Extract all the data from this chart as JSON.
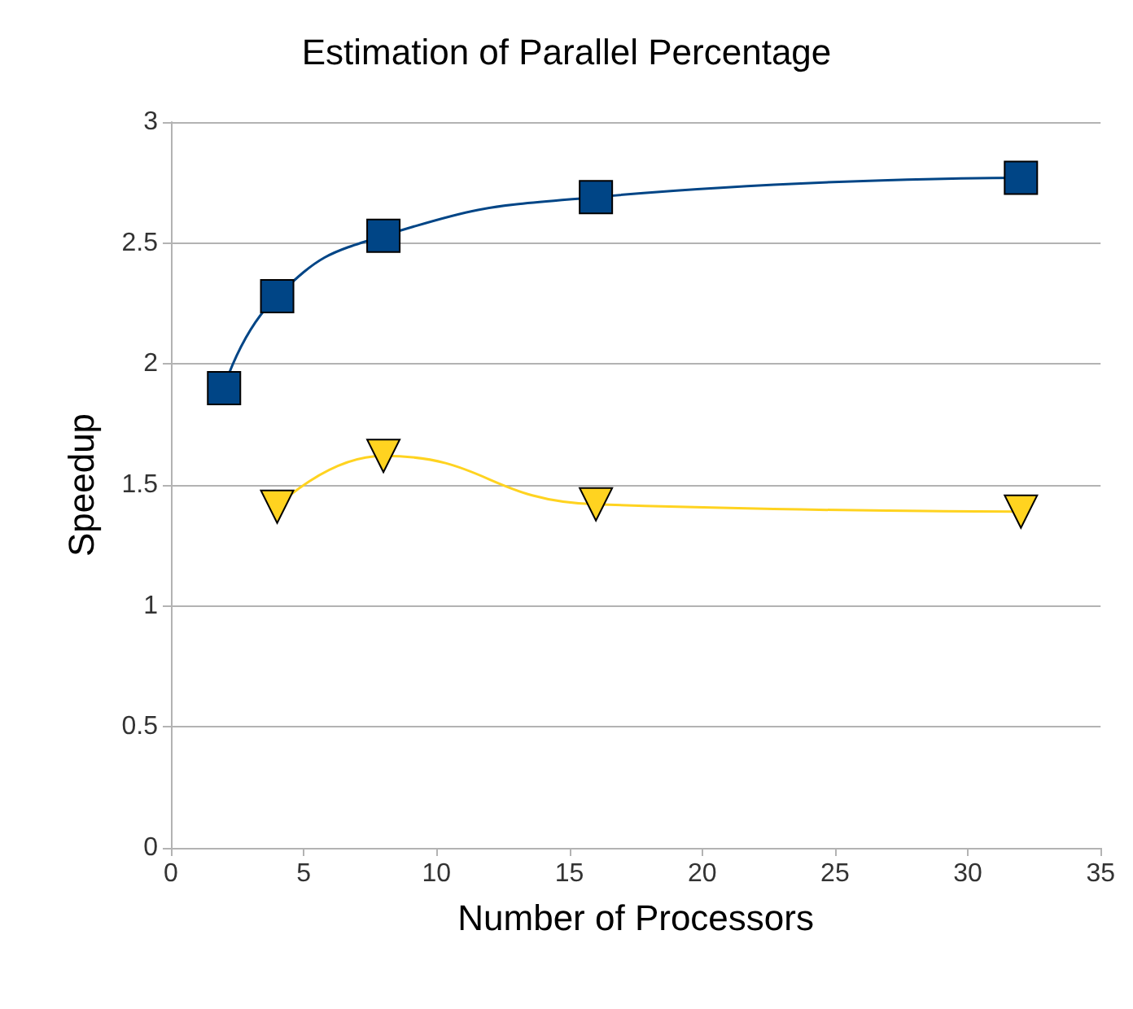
{
  "chart_data": {
    "type": "line",
    "title": "Estimation of Parallel Percentage",
    "xlabel": "Number of Processors",
    "ylabel": "Speedup",
    "xlim": [
      0,
      35
    ],
    "xticks": [
      0,
      5,
      10,
      15,
      20,
      25,
      30,
      35
    ],
    "ylim": [
      0,
      3
    ],
    "yticks": [
      0,
      0.5,
      1,
      1.5,
      2,
      2.5,
      3
    ],
    "grid": "y",
    "series": [
      {
        "color": "#004586",
        "marker": "square",
        "x": [
          2,
          4,
          8,
          16,
          32
        ],
        "values": [
          1.9,
          2.28,
          2.53,
          2.69,
          2.77
        ]
      },
      {
        "color": "#ffd320",
        "marker": "triangle",
        "x": [
          4,
          8,
          16,
          32
        ],
        "values": [
          1.41,
          1.62,
          1.42,
          1.39
        ]
      }
    ]
  }
}
